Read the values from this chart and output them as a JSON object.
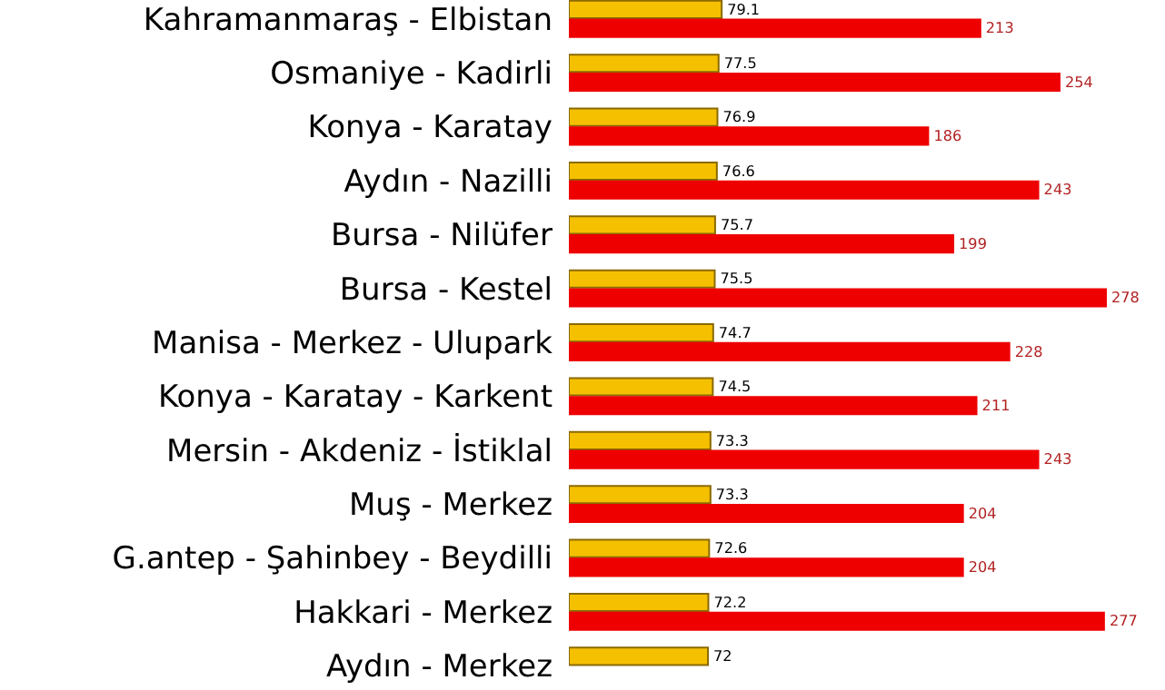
{
  "chart_data": {
    "type": "bar",
    "orientation": "horizontal",
    "data_labels": true,
    "legend": false,
    "categories": [
      "Kahramanmaraş - Elbistan",
      "Osmaniye - Kadirli",
      "Konya - Karatay",
      "Aydın - Nazilli",
      "Bursa - Nilüfer",
      "Bursa - Kestel",
      "Manisa - Merkez - Ulupark",
      "Konya - Karatay - Karkent",
      "Mersin - Akdeniz - İstiklal",
      "Muş - Merkez",
      "G.antep - Şahinbey - Beydilli",
      "Hakkari - Merkez",
      "Aydın - Merkez"
    ],
    "series": [
      {
        "color": "#f5c000",
        "values": [
          79.1,
          77.5,
          76.9,
          76.6,
          75.7,
          75.5,
          74.7,
          74.5,
          73.3,
          73.3,
          72.6,
          72.2,
          72
        ]
      },
      {
        "color": "#ee0000",
        "values": [
          213,
          254,
          186,
          243,
          199,
          278,
          228,
          211,
          243,
          204,
          204,
          277,
          null
        ]
      }
    ]
  }
}
